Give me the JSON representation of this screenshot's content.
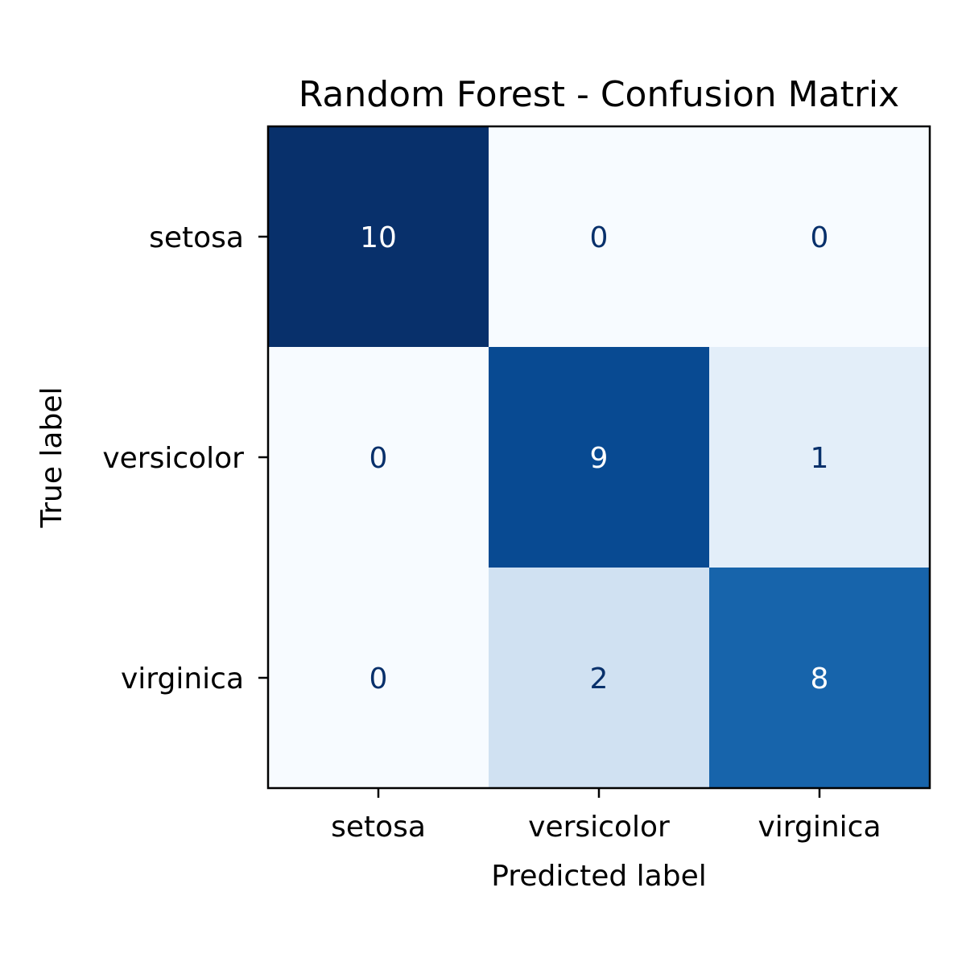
{
  "chart_data": {
    "type": "heatmap",
    "title": "Random Forest - Confusion Matrix",
    "xlabel": "Predicted label",
    "ylabel": "True label",
    "x_categories": [
      "setosa",
      "versicolor",
      "virginica"
    ],
    "y_categories": [
      "setosa",
      "versicolor",
      "virginica"
    ],
    "values": [
      [
        10,
        0,
        0
      ],
      [
        0,
        9,
        1
      ],
      [
        0,
        2,
        8
      ]
    ],
    "colormap": "Blues",
    "vmin": 0,
    "vmax": 10,
    "colorbar": false,
    "grid": false
  }
}
